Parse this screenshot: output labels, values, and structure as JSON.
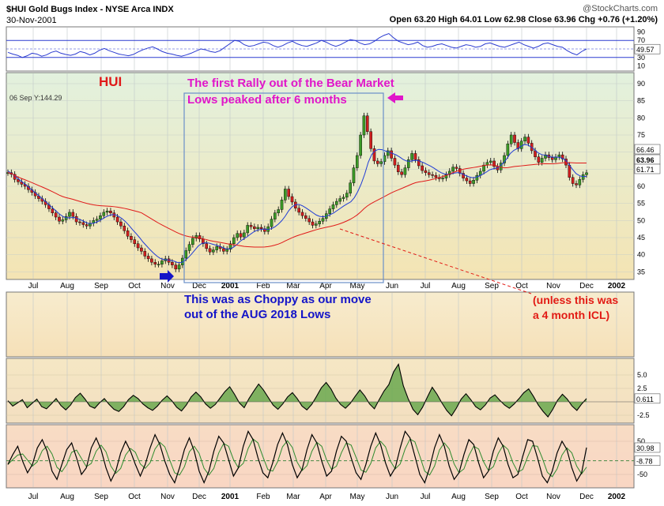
{
  "header": {
    "title": "$HUI Gold Bugs Index - NYSE Arca INDX",
    "date": "30-Nov-2001",
    "brand": "@StockCharts.com",
    "ohlc": "Open 63.20   High 64.01   Low 62.98   Close 63.96   Chg +0.76 (+1.20%)"
  },
  "colors": {
    "bg_top": "#e4f2e0",
    "bg_bottom": "#f3e4b5",
    "lower_bg_top": "#f7ebcb",
    "lower_bg_bottom": "#fbdcc5",
    "up_bar": "#000000",
    "up_fill": "#3b9a26",
    "down_fill": "#d01f1f",
    "ma_short": "#1f3bd6",
    "ma_long": "#e01919",
    "rsi": "#2b3bd0",
    "annotation_pink": "#e016c9",
    "annotation_blue": "#1414c8",
    "annotation_red": "#e21a14"
  },
  "annotations": {
    "hui": "HUI",
    "rally_line1": "The first Rally out of the Bear Market",
    "rally_line2": "Lows peaked after 6 months",
    "choppy_line1": "This was as Choppy as our move",
    "choppy_line2": "out of the AUG 2018 Lows",
    "icl_line1": "(unless this was",
    "icl_line2": "a 4 month ICL)",
    "sep_note": "06 Sep Y:144.29"
  },
  "chart_data": [
    {
      "type": "line",
      "name": "RSI",
      "ylim": [
        0,
        100
      ],
      "y_ticks": [
        10,
        30,
        50,
        70,
        90
      ],
      "reference_lines": [
        30,
        50,
        70
      ],
      "last_label": "49.57",
      "values": [
        42,
        38,
        35,
        30,
        34,
        40,
        38,
        33,
        36,
        42,
        45,
        40,
        37,
        35,
        38,
        44,
        41,
        36,
        40,
        47,
        51,
        46,
        42,
        38,
        36,
        34,
        37,
        43,
        48,
        52,
        55,
        50,
        44,
        40,
        38,
        35,
        33,
        36,
        40,
        45,
        50,
        48,
        44,
        42,
        46,
        54,
        62,
        70,
        68,
        60,
        56,
        58,
        62,
        66,
        64,
        58,
        54,
        58,
        64,
        68,
        62,
        58,
        56,
        60,
        64,
        70,
        66,
        60,
        56,
        60,
        66,
        72,
        70,
        64,
        60,
        62,
        68,
        76,
        82,
        86,
        76,
        68,
        64,
        60,
        62,
        66,
        58,
        54,
        56,
        60,
        62,
        58,
        54,
        52,
        56,
        60,
        58,
        54,
        56,
        62,
        64,
        60,
        56,
        54,
        58,
        62,
        66,
        60,
        56,
        52,
        56,
        62,
        64,
        60,
        56,
        54,
        46,
        40,
        36,
        44,
        50
      ]
    },
    {
      "type": "candlestick",
      "name": "HUI",
      "ylim": [
        33,
        93
      ],
      "y_ticks": [
        35,
        40,
        45,
        50,
        55,
        60,
        65,
        70,
        75,
        80,
        85,
        90
      ],
      "x_ticks": [
        "Jul",
        "Aug",
        "Sep",
        "Oct",
        "Nov",
        "Dec",
        "2001",
        "Feb",
        "Mar",
        "Apr",
        "May",
        "Jun",
        "Jul",
        "Aug",
        "Sep",
        "Oct",
        "Nov",
        "Dec",
        "2002"
      ],
      "last_labels": {
        "ma_short": "66.46",
        "close": "63.96",
        "ma_long": "61.71"
      },
      "close": [
        64,
        63.5,
        62,
        61.3,
        60.6,
        60,
        59,
        58.2,
        57.2,
        56.4,
        55.6,
        54.6,
        53.4,
        52.2,
        51,
        49.8,
        50.2,
        51.2,
        52.4,
        51.2,
        49.6,
        49.4,
        48.8,
        48.4,
        49.2,
        50,
        50.4,
        51.4,
        52.4,
        52.8,
        52.2,
        51,
        49.6,
        48.4,
        47,
        45.4,
        44.4,
        43.2,
        42,
        41,
        39.6,
        38.8,
        37.8,
        37.2,
        37.2,
        38.2,
        38.8,
        37.8,
        37,
        35.8,
        37,
        39,
        41.2,
        43,
        44.8,
        45.6,
        44.6,
        43.2,
        41.8,
        40.8,
        41.4,
        42.4,
        41.8,
        41,
        41.6,
        43.2,
        45,
        46.2,
        45.2,
        46.4,
        48.6,
        48.2,
        47.6,
        48,
        47.6,
        46.8,
        48.2,
        50.4,
        52.2,
        53.2,
        56,
        59.2,
        57,
        55.4,
        53.6,
        52.4,
        51.4,
        50.6,
        49.6,
        48.6,
        49,
        49.8,
        50.6,
        52,
        53.4,
        54.6,
        55.6,
        56.4,
        56.8,
        58,
        61,
        65.4,
        69,
        75,
        80.6,
        76,
        71,
        67.4,
        66.6,
        67.2,
        69,
        70.4,
        68.2,
        66.2,
        64.2,
        63.4,
        65.4,
        67.8,
        69.6,
        67.8,
        66,
        64.6,
        64,
        63.4,
        63.2,
        62.6,
        62.2,
        62.4,
        63.4,
        64.4,
        65.6,
        65.2,
        63.8,
        62.4,
        61.6,
        60.8,
        61.8,
        63.2,
        64.4,
        66.2,
        67,
        67.4,
        65.8,
        64.8,
        66.8,
        69,
        72.4,
        75,
        72.8,
        71,
        73.2,
        74.4,
        72.6,
        70.4,
        68.6,
        67,
        68.2,
        69.2,
        68.4,
        67.8,
        68.6,
        69.2,
        68,
        66.2,
        62.6,
        60.8,
        60.4,
        62,
        63.4,
        63.96
      ],
      "ma_short": [
        64.5,
        63.8,
        63,
        62.2,
        61.4,
        60.6,
        59.8,
        58.9,
        58,
        57.2,
        56.3,
        55.4,
        54.5,
        53.6,
        52.7,
        51.8,
        51.1,
        50.8,
        50.8,
        50.9,
        50.6,
        50.2,
        49.7,
        49.2,
        49.1,
        49.3,
        49.7,
        50.3,
        50.9,
        51.4,
        51.7,
        51.7,
        51.2,
        50.5,
        49.6,
        48.5,
        47.3,
        46.2,
        45,
        43.7,
        42.6,
        41.5,
        40.5,
        39.6,
        38.9,
        38.6,
        38.5,
        38.3,
        38.1,
        37.7,
        37.7,
        38.2,
        39.1,
        40.2,
        41.4,
        42.6,
        43.3,
        43.5,
        43.4,
        43.1,
        42.8,
        42.5,
        42.1,
        41.7,
        41.7,
        42.1,
        42.9,
        43.9,
        44.6,
        45.2,
        46,
        46.7,
        47.2,
        47.4,
        47.5,
        47.4,
        47.6,
        48.1,
        48.9,
        49.9,
        51.2,
        52.8,
        54,
        54.6,
        54.7,
        54.3,
        53.7,
        53,
        52.3,
        51.6,
        51.2,
        51.1,
        51.3,
        51.7,
        52.2,
        52.9,
        53.6,
        54.3,
        54.9,
        55.5,
        56.7,
        58.5,
        60.8,
        63.6,
        67,
        69.3,
        70.4,
        70.8,
        70.7,
        70.3,
        70,
        69.6,
        69.2,
        68.6,
        67.9,
        67.4,
        67.3,
        67.5,
        67.6,
        67.3,
        66.9,
        66.4,
        65.9,
        65.3,
        64.6,
        64,
        63.6,
        63.5,
        63.7,
        63.9,
        64,
        63.7,
        63.2,
        62.8,
        62.5,
        62.6,
        63,
        63.5,
        64.1,
        64.8,
        65.1,
        65.3,
        65.9,
        66.8,
        68.1,
        69.6,
        70.5,
        71,
        71.6,
        72.2,
        72.1,
        71.5,
        70.7,
        69.8,
        69.3,
        69.1,
        68.8,
        68.5,
        68.5,
        68.5,
        68.2,
        67.6,
        66.3,
        64.9,
        63.7,
        63.1,
        62.8,
        62.9
      ]
    },
    {
      "type": "area",
      "name": "Oscillator 1",
      "y_ticks": [
        5.0,
        2.5,
        -2.5
      ],
      "last_label": "0.611",
      "values": [
        0.2,
        -0.8,
        -0.2,
        0.4,
        -1.1,
        -0.3,
        0.5,
        -0.9,
        -1.3,
        -0.4,
        0.6,
        -0.7,
        -1.5,
        -0.6,
        0.8,
        1.6,
        0.5,
        -0.8,
        -1.2,
        -0.2,
        0.6,
        -0.5,
        -1.4,
        -1.8,
        -0.9,
        0.4,
        1.2,
        0.6,
        -0.4,
        -1.1,
        -1.6,
        -0.8,
        0.3,
        1.1,
        0.2,
        -1.0,
        -1.7,
        -0.6,
        0.9,
        1.8,
        0.9,
        -0.4,
        -1.2,
        -0.5,
        0.7,
        1.9,
        2.8,
        1.4,
        -0.2,
        -1.1,
        0.6,
        2.0,
        3.3,
        2.2,
        0.8,
        -0.6,
        -1.4,
        -0.4,
        0.9,
        1.7,
        0.6,
        -0.8,
        -1.5,
        -0.5,
        1.0,
        2.6,
        3.6,
        2.4,
        0.7,
        -0.5,
        -1.2,
        -0.3,
        1.0,
        2.2,
        1.1,
        -0.4,
        -1.3,
        0.4,
        2.0,
        3.2,
        5.6,
        7.0,
        3.0,
        0.6,
        -1.4,
        -2.4,
        -1.0,
        0.9,
        2.7,
        1.4,
        -0.2,
        -1.6,
        -2.6,
        -1.2,
        0.5,
        1.5,
        0.4,
        -0.9,
        -1.5,
        -0.6,
        0.7,
        1.3,
        0.3,
        -0.6,
        -1.2,
        -0.4,
        0.6,
        1.7,
        2.4,
        1.0,
        -0.6,
        -1.8,
        -2.8,
        -1.4,
        0.3,
        1.4,
        0.5,
        -0.8,
        -1.6,
        -0.4,
        0.611
      ]
    },
    {
      "type": "line",
      "name": "Oscillator 2",
      "y_ticks": [
        50,
        30.98,
        -8.78,
        -50
      ],
      "last_labels": [
        "30.98",
        "-8.78"
      ],
      "values": [
        -20,
        10,
        35,
        -10,
        -45,
        -20,
        30,
        55,
        20,
        -40,
        -65,
        -20,
        25,
        45,
        0,
        -50,
        -30,
        30,
        60,
        25,
        -30,
        -70,
        -40,
        15,
        50,
        20,
        -20,
        -55,
        -20,
        30,
        70,
        40,
        -10,
        -50,
        -75,
        -30,
        25,
        60,
        20,
        -40,
        -75,
        -40,
        20,
        65,
        45,
        -5,
        -55,
        -30,
        35,
        80,
        55,
        0,
        -45,
        -60,
        -15,
        40,
        75,
        40,
        -20,
        -60,
        -35,
        25,
        70,
        45,
        -10,
        -55,
        -40,
        20,
        65,
        50,
        0,
        -45,
        -65,
        -20,
        35,
        75,
        40,
        -15,
        -55,
        -30,
        30,
        80,
        60,
        5,
        -50,
        -75,
        -30,
        30,
        70,
        35,
        -25,
        -65,
        -45,
        10,
        55,
        40,
        -15,
        -60,
        -40,
        20,
        60,
        35,
        -20,
        -60,
        -50,
        5,
        55,
        50,
        0,
        -55,
        -75,
        -40,
        15,
        50,
        25,
        -30,
        -70,
        -45,
        30.98
      ]
    }
  ]
}
